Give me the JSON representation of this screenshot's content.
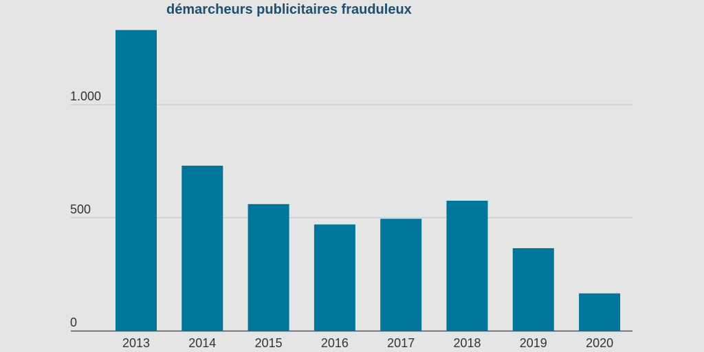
{
  "chart_data": {
    "type": "bar",
    "title": "démarcheurs publicitaires frauduleux",
    "categories": [
      "2013",
      "2014",
      "2015",
      "2016",
      "2017",
      "2018",
      "2019",
      "2020"
    ],
    "values": [
      1330,
      730,
      560,
      470,
      495,
      575,
      365,
      165
    ],
    "ylim": [
      0,
      1330
    ],
    "yticks": [
      {
        "value": 0,
        "label": "0"
      },
      {
        "value": 500,
        "label": "500"
      },
      {
        "value": 1000,
        "label": "1.000"
      }
    ],
    "xlabel": "",
    "ylabel": "",
    "grid": true,
    "bar_color": "#00769a",
    "grid_color": "#c4c4c4",
    "axis_color": "#555555"
  }
}
